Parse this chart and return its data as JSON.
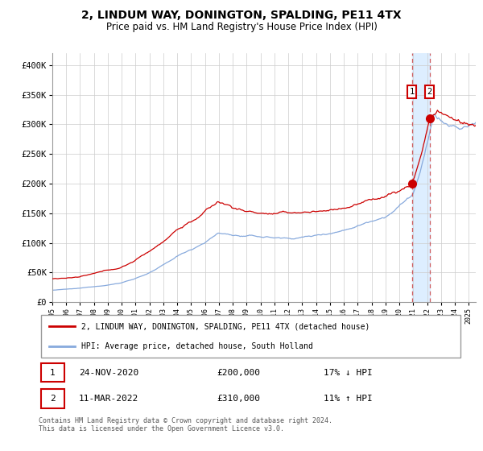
{
  "title": "2, LINDUM WAY, DONINGTON, SPALDING, PE11 4TX",
  "subtitle": "Price paid vs. HM Land Registry's House Price Index (HPI)",
  "title_fontsize": 10,
  "subtitle_fontsize": 8.5,
  "legend_line1": "2, LINDUM WAY, DONINGTON, SPALDING, PE11 4TX (detached house)",
  "legend_line2": "HPI: Average price, detached house, South Holland",
  "red_color": "#cc0000",
  "blue_color": "#88aadd",
  "highlight_fill": "#ddeeff",
  "annotation1_date": "24-NOV-2020",
  "annotation1_price": "£200,000",
  "annotation1_hpi": "17% ↓ HPI",
  "annotation2_date": "11-MAR-2022",
  "annotation2_price": "£310,000",
  "annotation2_hpi": "11% ↑ HPI",
  "footer": "Contains HM Land Registry data © Crown copyright and database right 2024.\nThis data is licensed under the Open Government Licence v3.0.",
  "ylim_max": 420000,
  "transaction1_year": 2020.9,
  "transaction2_year": 2022.17,
  "transaction1_value": 200000,
  "transaction2_value": 310000
}
